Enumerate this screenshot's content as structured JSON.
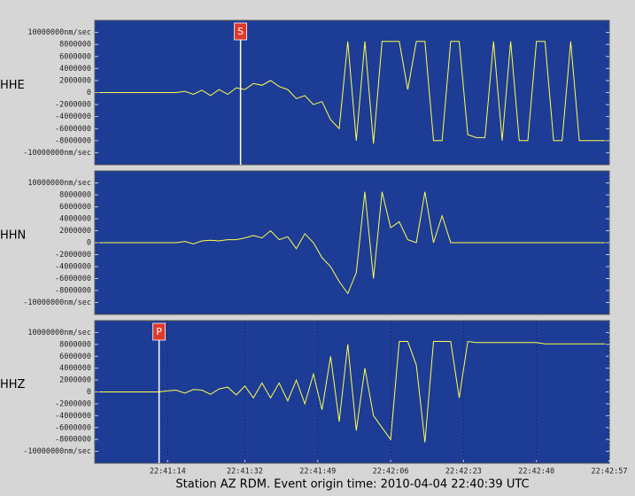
{
  "chart_data": [
    {
      "type": "line",
      "title": "HHE",
      "color": "#ffff4d",
      "grid": false,
      "xlim": [
        81657,
        81777
      ],
      "ylim": [
        -12000000,
        12000000
      ],
      "yticks": [
        {
          "value": 10000000,
          "label": "10000000nm/sec"
        },
        8000000,
        6000000,
        4000000,
        2000000,
        0,
        -2000000,
        -4000000,
        -6000000,
        -8000000,
        {
          "value": -10000000,
          "label": "-10000000nm/sec"
        }
      ],
      "markers": [
        {
          "label": "S",
          "x": 81691
        }
      ],
      "x": [
        81658,
        81660,
        81662,
        81664,
        81666,
        81668,
        81670,
        81672,
        81674,
        81676,
        81678,
        81680,
        81682,
        81684,
        81686,
        81688,
        81690,
        81692,
        81694,
        81696,
        81698,
        81700,
        81702,
        81704,
        81706,
        81708,
        81710,
        81712,
        81714,
        81716,
        81718,
        81720,
        81722,
        81724,
        81726,
        81728,
        81730,
        81732,
        81734,
        81736,
        81738,
        81740,
        81742,
        81744,
        81746,
        81748,
        81750,
        81752,
        81754,
        81756,
        81758,
        81760,
        81762,
        81764,
        81766,
        81768,
        81770,
        81772,
        81774,
        81776
      ],
      "values": [
        0,
        0,
        0,
        0,
        0,
        0,
        0,
        0,
        0,
        0,
        200000,
        -300000,
        400000,
        -500000,
        500000,
        -300000,
        800000,
        500000,
        1500000,
        1200000,
        2000000,
        1000000,
        500000,
        -1000000,
        -500000,
        -2000000,
        -1500000,
        -4500000,
        -6000000,
        8500000,
        -8000000,
        8500000,
        -8500000,
        8500000,
        8500000,
        8500000,
        500000,
        8500000,
        8500000,
        -8000000,
        -8000000,
        8500000,
        8500000,
        -7000000,
        -7500000,
        -7500000,
        8500000,
        -8000000,
        8500000,
        -8000000,
        -8000000,
        8500000,
        8500000,
        -8000000,
        -8000000,
        8500000,
        -8000000,
        -8000000,
        -8000000,
        -8000000
      ]
    },
    {
      "type": "line",
      "title": "HHN",
      "color": "#ffff4d",
      "grid": false,
      "xlim": [
        81657,
        81777
      ],
      "ylim": [
        -12000000,
        12000000
      ],
      "yticks": [
        {
          "value": 10000000,
          "label": "10000000nm/sec"
        },
        8000000,
        6000000,
        4000000,
        2000000,
        0,
        -2000000,
        -4000000,
        -6000000,
        -8000000,
        {
          "value": -10000000,
          "label": "-10000000nm/sec"
        }
      ],
      "x": [
        81658,
        81660,
        81662,
        81664,
        81666,
        81668,
        81670,
        81672,
        81674,
        81676,
        81678,
        81680,
        81682,
        81684,
        81686,
        81688,
        81690,
        81692,
        81694,
        81696,
        81698,
        81700,
        81702,
        81704,
        81706,
        81708,
        81710,
        81712,
        81714,
        81716,
        81718,
        81720,
        81722,
        81724,
        81726,
        81728,
        81730,
        81732,
        81734,
        81736,
        81738,
        81740,
        81742,
        81744,
        81746,
        81748,
        81750,
        81752,
        81754,
        81756,
        81758,
        81760,
        81762,
        81764,
        81766,
        81768,
        81770,
        81772,
        81774,
        81776
      ],
      "values": [
        0,
        0,
        0,
        0,
        0,
        0,
        0,
        0,
        0,
        0,
        200000,
        -200000,
        300000,
        400000,
        300000,
        500000,
        500000,
        800000,
        1200000,
        800000,
        2000000,
        500000,
        1000000,
        -1000000,
        1500000,
        0,
        -2500000,
        -4000000,
        -6500000,
        -8500000,
        -5000000,
        8500000,
        -6000000,
        8500000,
        2500000,
        3500000,
        500000,
        0,
        8500000,
        0,
        4500000,
        0,
        0,
        0,
        0,
        0,
        0,
        0,
        0,
        0,
        0,
        0,
        0,
        0,
        0,
        0,
        0,
        0,
        0,
        0
      ]
    },
    {
      "type": "line",
      "title": "HHZ",
      "color": "#ffff4d",
      "grid": true,
      "xlim": [
        81657,
        81777
      ],
      "ylim": [
        -12000000,
        12000000
      ],
      "yticks": [
        {
          "value": 10000000,
          "label": "10000000nm/sec"
        },
        8000000,
        6000000,
        4000000,
        2000000,
        0,
        -2000000,
        -4000000,
        -6000000,
        -8000000,
        {
          "value": -10000000,
          "label": "-10000000nm/sec"
        }
      ],
      "xticks": [
        {
          "value": 81674,
          "label": "22:41:14"
        },
        {
          "value": 81692,
          "label": "22:41:32"
        },
        {
          "value": 81709,
          "label": "22:41:49"
        },
        {
          "value": 81726,
          "label": "22:42:06"
        },
        {
          "value": 81743,
          "label": "22:42:23"
        },
        {
          "value": 81760,
          "label": "22:42:40"
        },
        {
          "value": 81777,
          "label": "22:42:57"
        }
      ],
      "markers": [
        {
          "label": "P",
          "x": 81672
        }
      ],
      "x": [
        81658,
        81660,
        81662,
        81664,
        81666,
        81668,
        81670,
        81672,
        81674,
        81676,
        81678,
        81680,
        81682,
        81684,
        81686,
        81688,
        81690,
        81692,
        81694,
        81696,
        81698,
        81700,
        81702,
        81704,
        81706,
        81708,
        81710,
        81712,
        81714,
        81716,
        81718,
        81720,
        81722,
        81724,
        81726,
        81728,
        81730,
        81732,
        81734,
        81736,
        81738,
        81740,
        81742,
        81744,
        81746,
        81748,
        81750,
        81752,
        81754,
        81756,
        81758,
        81760,
        81762,
        81764,
        81766,
        81768,
        81770,
        81772,
        81774,
        81776
      ],
      "values": [
        0,
        0,
        0,
        0,
        0,
        0,
        0,
        0,
        200000,
        300000,
        -200000,
        400000,
        300000,
        -400000,
        500000,
        800000,
        -500000,
        1000000,
        -1000000,
        1500000,
        -1000000,
        1500000,
        -1500000,
        2000000,
        -2000000,
        3000000,
        -3000000,
        6000000,
        -5000000,
        8000000,
        -6500000,
        4000000,
        -4000000,
        -6000000,
        -8000000,
        8500000,
        8500000,
        4500000,
        -8500000,
        8500000,
        8500000,
        8500000,
        -1000000,
        8500000,
        8300000,
        8300000,
        8300000,
        8300000,
        8300000,
        8300000,
        8300000,
        8300000,
        8100000,
        8100000,
        8100000,
        8100000,
        8100000,
        8100000,
        8100000,
        8100000
      ]
    }
  ],
  "caption": "Station AZ RDM.  Event origin time: 2010-04-04 22:40:39 UTC"
}
